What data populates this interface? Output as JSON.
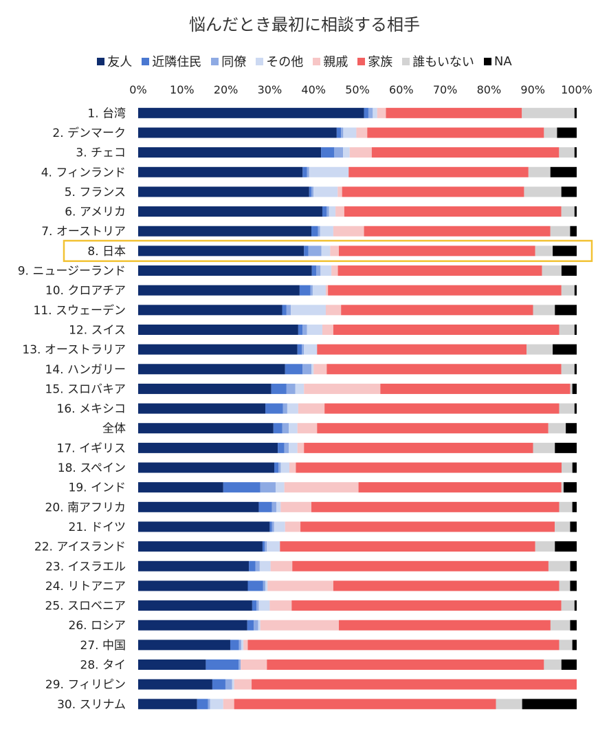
{
  "chart_data": {
    "type": "bar",
    "orientation": "horizontal",
    "stacked": "percent",
    "title": "悩んだとき最初に相談する相手",
    "xlim": [
      0,
      100
    ],
    "x_ticks": [
      "0%",
      "10%",
      "20%",
      "30%",
      "40%",
      "50%",
      "60%",
      "70%",
      "80%",
      "90%",
      "100%"
    ],
    "legend_position": "top",
    "grid": false,
    "categories": [
      "1. 台湾",
      "2. デンマーク",
      "3. チェコ",
      "4. フィンランド",
      "5. フランス",
      "6. アメリカ",
      "7. オーストリア",
      "8. 日本",
      "9. ニュージーランド",
      "10. クロアチア",
      "11. スウェーデン",
      "12. スイス",
      "13. オーストラリア",
      "14. ハンガリー",
      "15. スロバキア",
      "16. メキシコ",
      "全体",
      "17. イギリス",
      "18. スペイン",
      "19. インド",
      "20. 南アフリカ",
      "21. ドイツ",
      "22. アイスランド",
      "23. イスラエル",
      "24. リトアニア",
      "25. スロベニア",
      "26. ロシア",
      "27. 中国",
      "28. タイ",
      "29. フィリピン",
      "30. スリナム"
    ],
    "highlight_category": "8. 日本",
    "highlight_color": "#F2C233",
    "series": [
      {
        "name": "友人",
        "color": "#0F2D6E",
        "values": [
          51.5,
          45.5,
          41.5,
          37.5,
          39.0,
          42.0,
          39.5,
          38.0,
          40.0,
          37.0,
          33.0,
          36.5,
          36.5,
          33.5,
          30.5,
          29.0,
          31.0,
          32.0,
          31.5,
          19.5,
          27.5,
          30.0,
          28.5,
          25.5,
          25.0,
          26.0,
          25.0,
          21.0,
          15.5,
          17.0,
          13.5
        ]
      },
      {
        "name": "近隣住民",
        "color": "#4A78D1",
        "values": [
          1.0,
          1.0,
          3.0,
          1.0,
          0.5,
          1.0,
          1.5,
          1.0,
          1.0,
          2.5,
          1.0,
          1.0,
          1.0,
          4.0,
          3.5,
          4.0,
          2.0,
          1.5,
          1.0,
          8.5,
          3.0,
          0.5,
          0.5,
          1.5,
          3.5,
          1.0,
          1.5,
          2.0,
          7.5,
          3.0,
          2.5
        ]
      },
      {
        "name": "同僚",
        "color": "#8EAAE3",
        "values": [
          1.0,
          0.5,
          2.0,
          0.5,
          0.5,
          0.5,
          0.5,
          3.0,
          1.0,
          0.5,
          1.0,
          1.0,
          0.5,
          2.0,
          2.0,
          1.0,
          1.5,
          1.0,
          0.5,
          3.5,
          1.0,
          0.5,
          0.5,
          1.0,
          0.5,
          0.5,
          1.0,
          0.5,
          0.5,
          1.5,
          0.5
        ]
      },
      {
        "name": "その他",
        "color": "#CCD9F2",
        "values": [
          1.0,
          3.0,
          1.5,
          9.0,
          5.5,
          1.5,
          3.0,
          2.0,
          2.5,
          3.0,
          8.0,
          3.5,
          3.0,
          0.5,
          2.0,
          2.5,
          2.0,
          2.0,
          2.0,
          2.0,
          1.0,
          2.5,
          3.0,
          2.5,
          0.5,
          2.5,
          0.5,
          0.5,
          0.0,
          0.5,
          3.0
        ]
      },
      {
        "name": "親戚",
        "color": "#F7C6C6",
        "values": [
          2.0,
          2.5,
          5.0,
          0.0,
          1.0,
          2.0,
          7.0,
          2.0,
          1.5,
          0.5,
          3.5,
          2.5,
          0.0,
          3.0,
          17.5,
          6.0,
          4.5,
          1.5,
          1.5,
          17.0,
          7.0,
          3.5,
          0.0,
          5.0,
          15.0,
          5.0,
          18.0,
          1.0,
          6.0,
          4.0,
          2.5
        ]
      },
      {
        "name": "家族",
        "color": "#F26161",
        "values": [
          31.0,
          40.5,
          42.5,
          41.0,
          41.5,
          49.5,
          42.5,
          45.0,
          47.0,
          53.5,
          44.0,
          51.5,
          48.0,
          53.5,
          43.5,
          53.5,
          53.0,
          52.5,
          61.5,
          46.5,
          56.5,
          58.0,
          58.5,
          59.0,
          51.5,
          61.5,
          48.5,
          71.0,
          63.5,
          74.5,
          60.0
        ]
      },
      {
        "name": "誰もいない",
        "color": "#D3D3D3",
        "values": [
          12.0,
          3.0,
          3.5,
          5.0,
          8.5,
          3.0,
          4.5,
          4.0,
          4.5,
          3.0,
          5.0,
          3.5,
          6.0,
          3.0,
          0.5,
          3.5,
          4.0,
          5.0,
          2.5,
          0.5,
          3.0,
          3.5,
          4.5,
          5.0,
          2.5,
          3.0,
          4.5,
          3.0,
          4.0,
          0.0,
          6.0
        ]
      },
      {
        "name": "NA",
        "color": "#000000",
        "values": [
          0.5,
          4.5,
          0.5,
          6.0,
          3.5,
          0.5,
          1.5,
          5.5,
          3.5,
          0.5,
          5.0,
          0.5,
          5.5,
          0.5,
          1.0,
          0.5,
          2.5,
          5.0,
          1.0,
          3.0,
          1.0,
          1.5,
          5.0,
          1.5,
          1.5,
          0.5,
          1.5,
          1.0,
          3.5,
          0.0,
          12.5
        ]
      }
    ]
  }
}
